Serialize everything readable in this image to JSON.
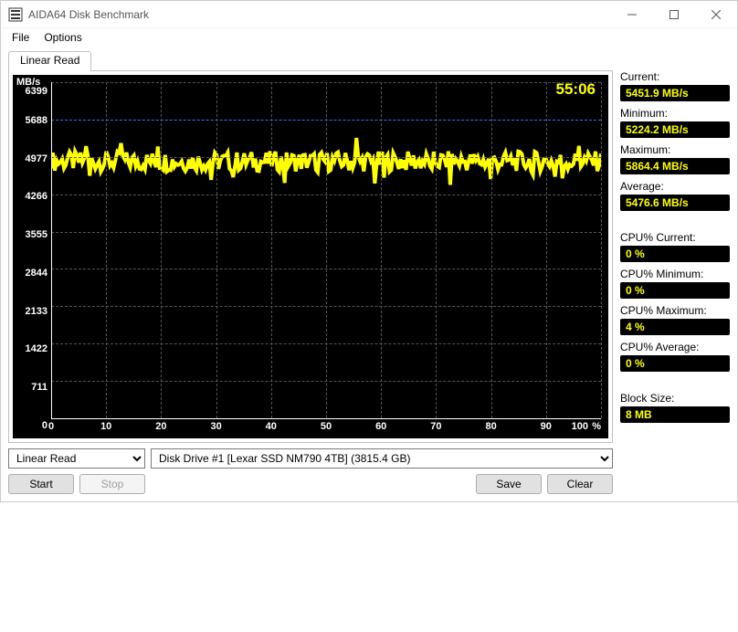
{
  "window": {
    "title": "AIDA64 Disk Benchmark"
  },
  "menu": {
    "file": "File",
    "options": "Options"
  },
  "tab": {
    "linear_read": "Linear Read"
  },
  "chart": {
    "unit_y": "MB/s",
    "unit_x_pct": "%",
    "timer": "55:06",
    "y_ticks": [
      "6399",
      "5688",
      "4977",
      "4266",
      "3555",
      "2844",
      "2133",
      "1422",
      "711",
      "0"
    ],
    "x_ticks": [
      "0",
      "10",
      "20",
      "30",
      "40",
      "50",
      "60",
      "70",
      "80",
      "90",
      "100"
    ],
    "y_max": 6399,
    "trace_avg": 5476.6,
    "trace_color": "#ffff00",
    "grid_color": "#555555",
    "bg_color": "#000000",
    "marker_line_value": 5688
  },
  "selects": {
    "mode_options": [
      "Linear Read"
    ],
    "mode_selected": "Linear Read",
    "drive_options": [
      "Disk Drive #1  [Lexar SSD NM790 4TB]  (3815.4 GB)"
    ],
    "drive_selected": "Disk Drive #1  [Lexar SSD NM790 4TB]  (3815.4 GB)"
  },
  "buttons": {
    "start": "Start",
    "stop": "Stop",
    "save": "Save",
    "clear": "Clear"
  },
  "stats": {
    "current_label": "Current:",
    "current_value": "5451.9 MB/s",
    "minimum_label": "Minimum:",
    "minimum_value": "5224.2 MB/s",
    "maximum_label": "Maximum:",
    "maximum_value": "5864.4 MB/s",
    "average_label": "Average:",
    "average_value": "5476.6 MB/s",
    "cpu_current_label": "CPU% Current:",
    "cpu_current_value": "0 %",
    "cpu_minimum_label": "CPU% Minimum:",
    "cpu_minimum_value": "0 %",
    "cpu_maximum_label": "CPU% Maximum:",
    "cpu_maximum_value": "4 %",
    "cpu_average_label": "CPU% Average:",
    "cpu_average_value": "0 %",
    "block_size_label": "Block Size:",
    "block_size_value": "8 MB"
  }
}
